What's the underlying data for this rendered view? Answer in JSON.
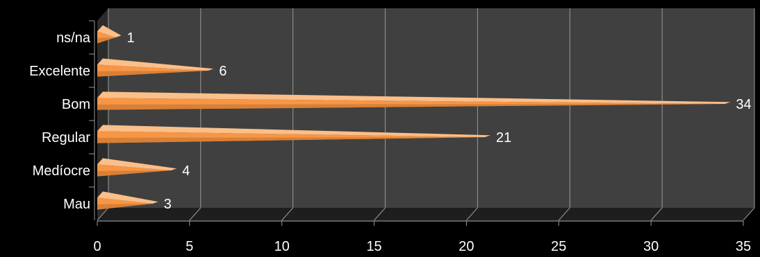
{
  "chart_data": {
    "type": "bar",
    "orientation": "horizontal",
    "three_d": true,
    "categories": [
      "ns/na",
      "Excelente",
      "Bom",
      "Regular",
      "Medíocre",
      "Mau"
    ],
    "values": [
      1,
      6,
      34,
      21,
      4,
      3
    ],
    "xlim": [
      0,
      35
    ],
    "xticks": [
      "0",
      "5",
      "10",
      "15",
      "20",
      "25",
      "30",
      "35"
    ],
    "title": "",
    "xlabel": "",
    "ylabel": "",
    "grid": true,
    "legend": "none",
    "colors": {
      "background": "#000000",
      "plot_wall": "#404040",
      "bar": "#f79646",
      "bar_light": "#fbbf8a",
      "bar_dark": "#c0702a",
      "grid": "#9a9a9a",
      "text": "#ffffff"
    }
  }
}
